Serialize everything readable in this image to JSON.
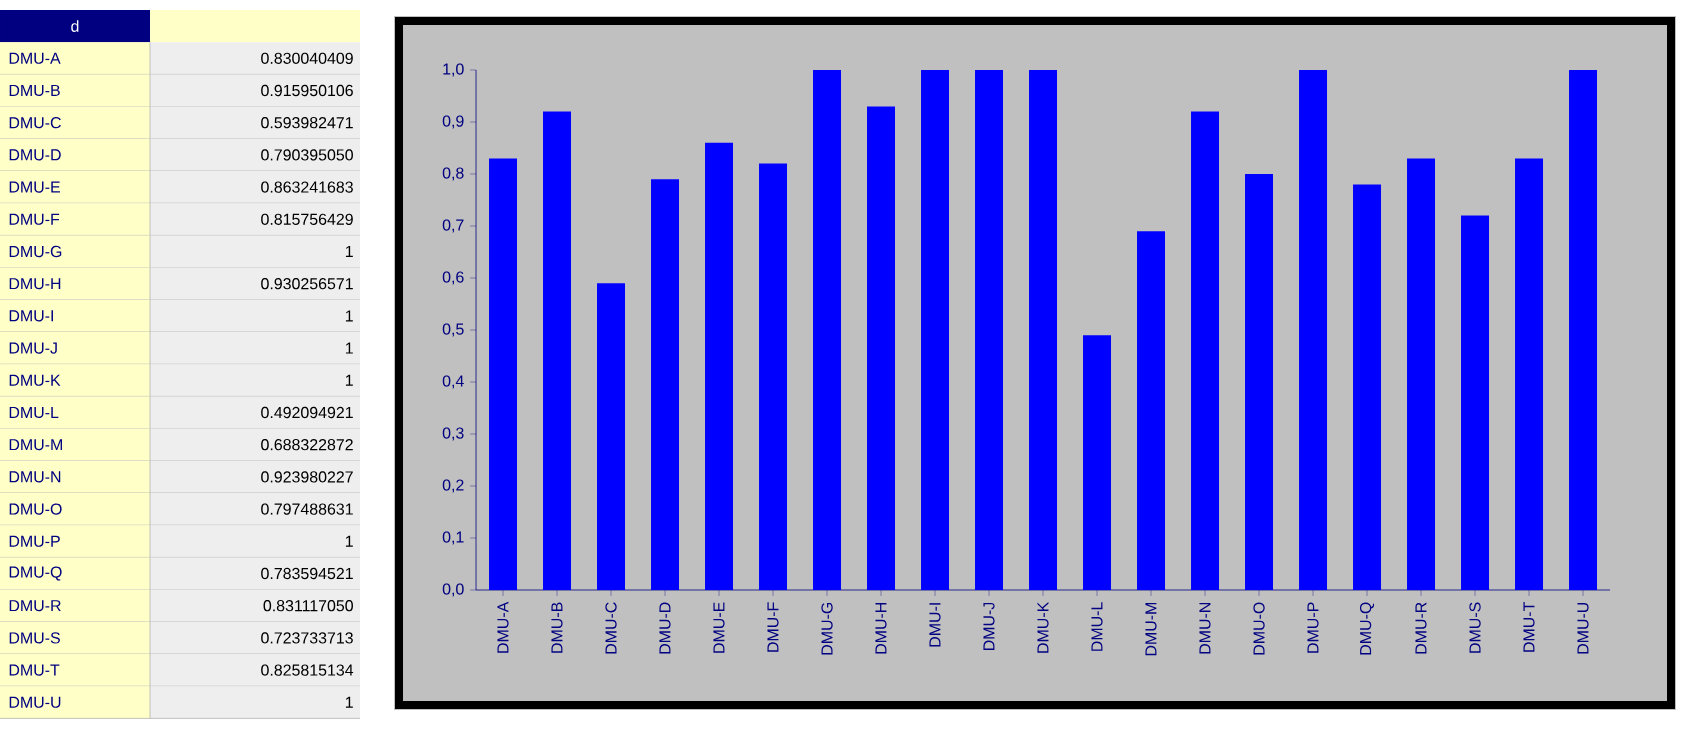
{
  "chart_data": [
    {
      "type": "other",
      "annotations": [
        "d",
        "DMU-A",
        "0.830040409",
        "DMU-B",
        "0.915950106",
        "DMU-C",
        "0.593982471",
        "DMU-D",
        "0.790395050",
        "DMU-E",
        "0.863241683",
        "DMU-F",
        "0.815756429",
        "DMU-G",
        "1",
        "DMU-H",
        "0.930256571",
        "DMU-I",
        "1",
        "DMU-J",
        "1",
        "DMU-K",
        "1",
        "DMU-L",
        "0.492094921",
        "DMU-M",
        "0.688322872",
        "DMU-N",
        "0.923980227",
        "DMU-O",
        "0.797488631",
        "DMU-P",
        "1",
        "DMU-Q",
        "0.783594521",
        "DMU-R",
        "0.831117050",
        "DMU-S",
        "0.723733713",
        "DMU-T",
        "0.825815134",
        "DMU-U",
        "1"
      ]
    },
    {
      "type": "bar",
      "categories": [
        "DMU-A",
        "DMU-B",
        "DMU-C",
        "DMU-D",
        "DMU-E",
        "DMU-F",
        "DMU-G",
        "DMU-H",
        "DMU-I",
        "DMU-J",
        "DMU-K",
        "DMU-L",
        "DMU-M",
        "DMU-N",
        "DMU-O",
        "DMU-P",
        "DMU-Q",
        "DMU-R",
        "DMU-S",
        "DMU-T",
        "DMU-U"
      ],
      "values": [
        0.83,
        0.92,
        0.59,
        0.79,
        0.86,
        0.82,
        1,
        0.93,
        1,
        1,
        1,
        0.49,
        0.69,
        0.92,
        0.8,
        1,
        0.78,
        0.83,
        0.72,
        0.83,
        1
      ],
      "color": "#0000ff",
      "ylim": [
        0,
        1
      ],
      "yticks": [
        {
          "value": 0,
          "label": "0,0"
        },
        {
          "value": 0.1,
          "label": "0,1"
        },
        {
          "value": 0.2,
          "label": "0,2"
        },
        {
          "value": 0.3,
          "label": "0,3"
        },
        {
          "value": 0.4,
          "label": "0,4"
        },
        {
          "value": 0.5,
          "label": "0,5"
        },
        {
          "value": 0.6,
          "label": "0,6"
        },
        {
          "value": 0.7,
          "label": "0,7"
        },
        {
          "value": 0.8,
          "label": "0,8"
        },
        {
          "value": 0.9,
          "label": "0,9"
        },
        {
          "value": 1,
          "label": "1,0"
        }
      ]
    }
  ]
}
